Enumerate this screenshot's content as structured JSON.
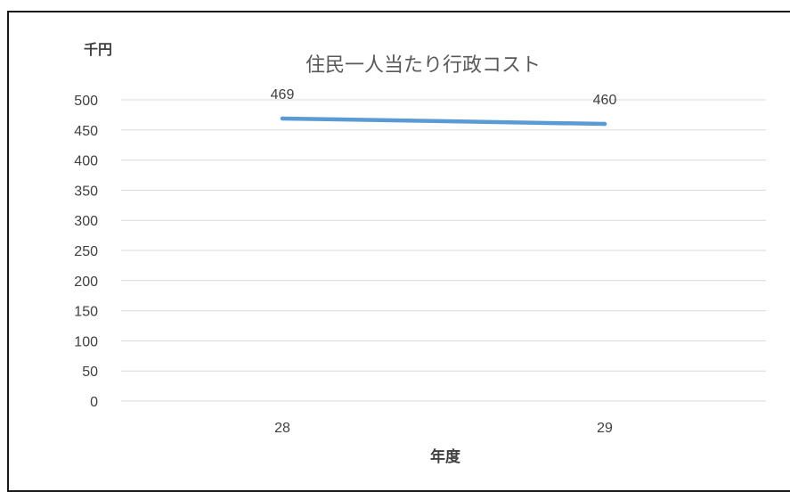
{
  "chart_data": {
    "type": "line",
    "title": "住民一人当たり行政コスト",
    "ylabel": "千円",
    "xlabel": "年度",
    "categories": [
      "28",
      "29"
    ],
    "series": [
      {
        "values": [
          469,
          460
        ],
        "data_labels": [
          "469",
          "460"
        ]
      }
    ],
    "ylim": [
      0,
      500
    ],
    "yticks": [
      "0",
      "50",
      "100",
      "150",
      "200",
      "250",
      "300",
      "350",
      "400",
      "450",
      "500"
    ],
    "grid": true,
    "legend": "none",
    "colors": {
      "series": "#5b9bd5",
      "grid": "#d9d9d9",
      "text": "#404040"
    }
  }
}
